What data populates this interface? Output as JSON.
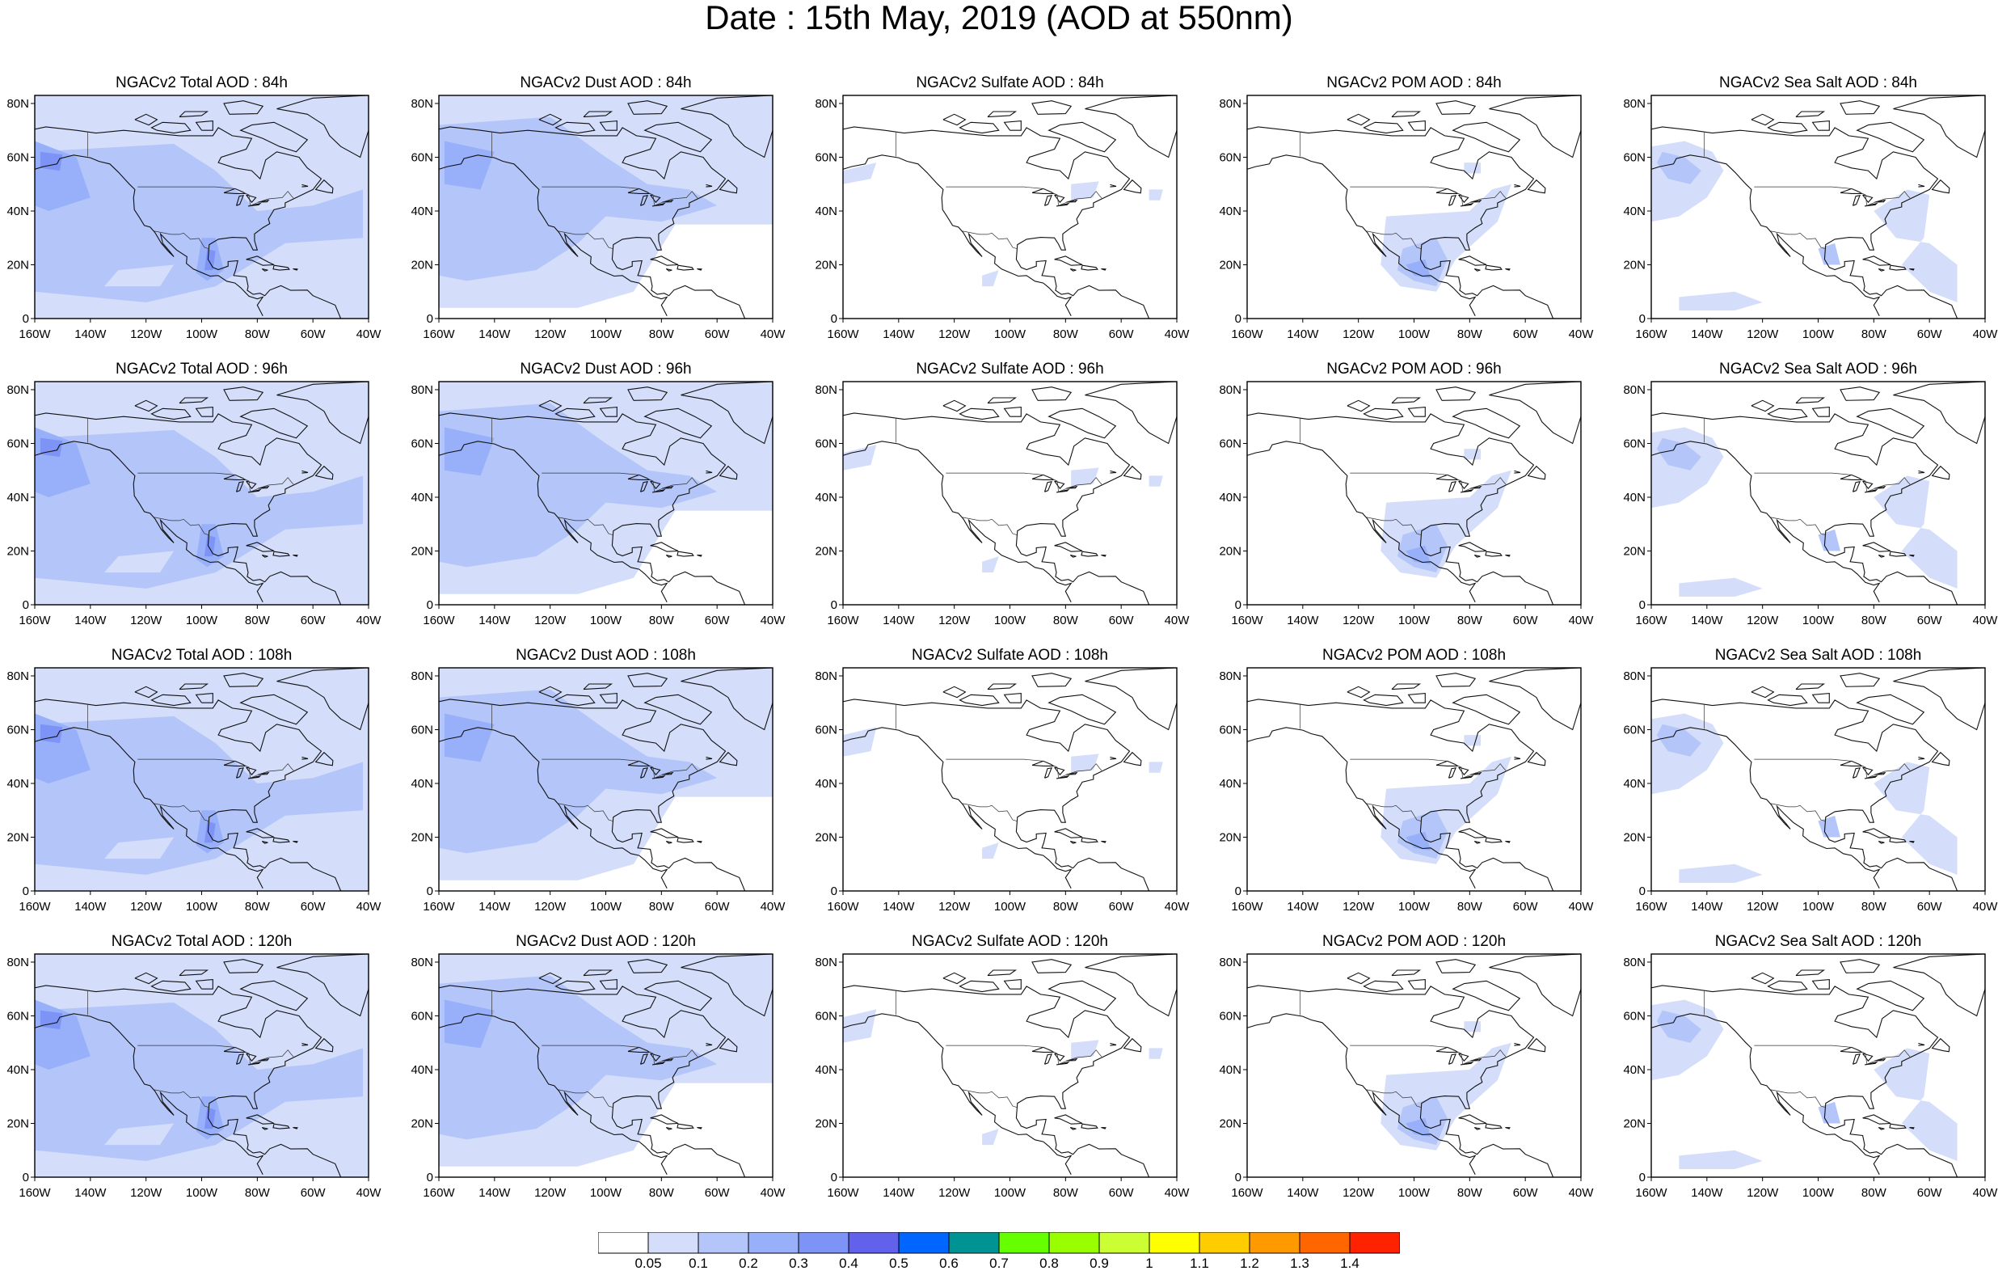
{
  "title": "Date : 15th May, 2019 (AOD at 550nm)",
  "panels": [
    {
      "title": "NGACv2 Total AOD : 84h",
      "type": "total"
    },
    {
      "title": "NGACv2 Dust AOD : 84h",
      "type": "dust"
    },
    {
      "title": "NGACv2 Sulfate AOD : 84h",
      "type": "sulfate"
    },
    {
      "title": "NGACv2 POM AOD : 84h",
      "type": "pom"
    },
    {
      "title": "NGACv2 Sea Salt AOD : 84h",
      "type": "seasalt"
    },
    {
      "title": "NGACv2 Total AOD : 96h",
      "type": "total"
    },
    {
      "title": "NGACv2 Dust AOD : 96h",
      "type": "dust"
    },
    {
      "title": "NGACv2 Sulfate AOD : 96h",
      "type": "sulfate"
    },
    {
      "title": "NGACv2 POM AOD : 96h",
      "type": "pom"
    },
    {
      "title": "NGACv2 Sea Salt AOD : 96h",
      "type": "seasalt"
    },
    {
      "title": "NGACv2 Total AOD : 108h",
      "type": "total"
    },
    {
      "title": "NGACv2 Dust AOD : 108h",
      "type": "dust"
    },
    {
      "title": "NGACv2 Sulfate AOD : 108h",
      "type": "sulfate"
    },
    {
      "title": "NGACv2 POM AOD : 108h",
      "type": "pom"
    },
    {
      "title": "NGACv2 Sea Salt AOD : 108h",
      "type": "seasalt"
    },
    {
      "title": "NGACv2 Total AOD : 120h",
      "type": "total"
    },
    {
      "title": "NGACv2 Dust AOD : 120h",
      "type": "dust"
    },
    {
      "title": "NGACv2 Sulfate AOD : 120h",
      "type": "sulfate"
    },
    {
      "title": "NGACv2 POM AOD : 120h",
      "type": "pom"
    },
    {
      "title": "NGACv2 Sea Salt  AOD : 120h",
      "type": "seasalt"
    }
  ],
  "lat_ticks": [
    "80N",
    "60N",
    "40N",
    "20N",
    "0"
  ],
  "lon_ticks": [
    "160W",
    "140W",
    "120W",
    "100W",
    "80W",
    "60W",
    "40W"
  ],
  "colorbar": {
    "labels": [
      "0.05",
      "0.1",
      "0.2",
      "0.3",
      "0.4",
      "0.5",
      "0.6",
      "0.7",
      "0.8",
      "0.9",
      "1",
      "1.1",
      "1.2",
      "1.3",
      "1.4"
    ],
    "colors": [
      "#ffffff",
      "#d4defb",
      "#b4c6f9",
      "#97b0f9",
      "#7d93f5",
      "#6161ec",
      "#0066ff",
      "#009393",
      "#66ff00",
      "#99ff00",
      "#ccff33",
      "#ffff00",
      "#ffcc00",
      "#ff9900",
      "#ff6600",
      "#ff2200"
    ]
  }
}
